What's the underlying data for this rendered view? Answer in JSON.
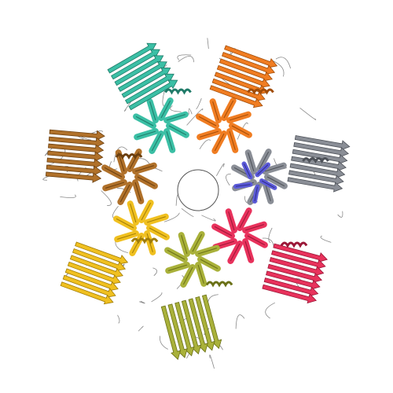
{
  "image": {
    "background": "#ffffff",
    "subject": "protein-complex-ribbon",
    "outline_color": "#3a3a3a",
    "subunits": [
      {
        "name": "subunit-teal",
        "color": "#3bbfa5",
        "dark": "#1f7a68"
      },
      {
        "name": "subunit-orange",
        "color": "#f07d22",
        "dark": "#a14c08"
      },
      {
        "name": "subunit-gray",
        "color": "#8a8e96",
        "dark": "#4d5158"
      },
      {
        "name": "subunit-blue",
        "color": "#5b5ad8",
        "dark": "#2f2e8a"
      },
      {
        "name": "subunit-red",
        "color": "#e8325c",
        "dark": "#9a1737"
      },
      {
        "name": "subunit-olive",
        "color": "#a9b13a",
        "dark": "#6a7016"
      },
      {
        "name": "subunit-yellow",
        "color": "#f0c020",
        "dark": "#a07c06"
      },
      {
        "name": "subunit-brown",
        "color": "#b0712a",
        "dark": "#6b3f0f"
      }
    ]
  }
}
